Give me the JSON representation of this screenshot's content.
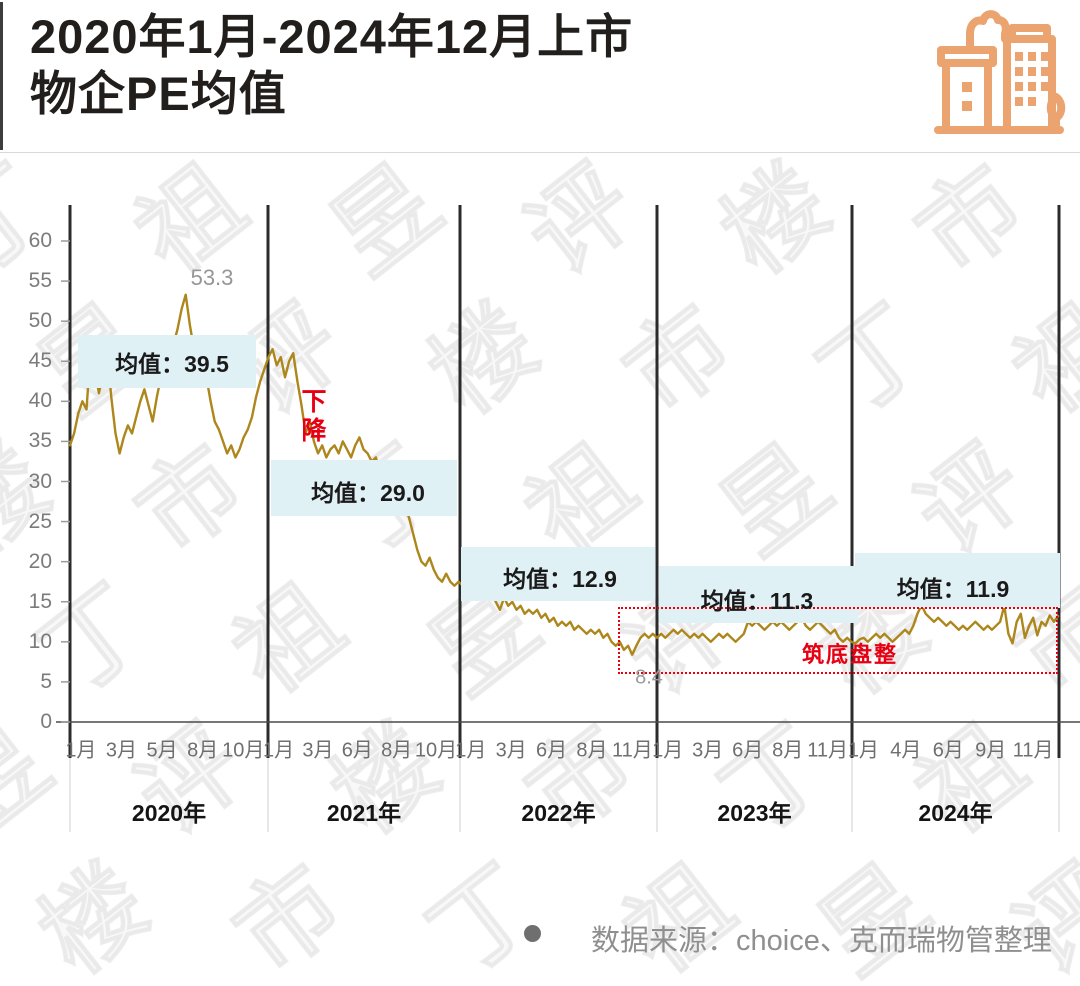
{
  "header": {
    "title_line1": "2020年1月-2024年12月上市",
    "title_line2": "物企PE均值"
  },
  "icon": {
    "name": "city-buildings-icon",
    "color": "#eba470"
  },
  "watermark": {
    "chars": [
      "丁",
      "祖",
      "昱",
      "评",
      "楼",
      "市"
    ]
  },
  "footer": {
    "source": "数据来源：choice、克而瑞物管整理"
  },
  "chart_data": {
    "type": "line",
    "title": "2020年1月-2024年12月上市物企PE均值",
    "ylabel": "PE",
    "ylim": [
      0,
      60
    ],
    "ytick_step": 5,
    "grid": false,
    "line_color": "#ad871c",
    "band_color": "#e0f1f6",
    "accent_red": "#e60012",
    "years": [
      {
        "label": "2020年",
        "months": [
          "1月",
          "3月",
          "5月",
          "8月",
          "10月"
        ]
      },
      {
        "label": "2021年",
        "months": [
          "1月",
          "3月",
          "6月",
          "8月",
          "10月"
        ]
      },
      {
        "label": "2022年",
        "months": [
          "1月",
          "3月",
          "6月",
          "8月",
          "11月"
        ]
      },
      {
        "label": "2023年",
        "months": [
          "1月",
          "3月",
          "6月",
          "8月",
          "11月"
        ]
      },
      {
        "label": "2024年",
        "months": [
          "1月",
          "4月",
          "6月",
          "9月",
          "11月"
        ]
      }
    ],
    "series": [
      {
        "name": "上市物企PE均值",
        "values": [
          34.5,
          36.0,
          38.5,
          40.0,
          39.0,
          46.5,
          44.0,
          41.0,
          43.5,
          46.0,
          40.5,
          36.0,
          33.5,
          35.5,
          37.0,
          36.0,
          38.0,
          40.0,
          41.5,
          39.5,
          37.5,
          40.5,
          43.0,
          45.5,
          44.5,
          47.0,
          49.0,
          51.5,
          53.3,
          49.5,
          46.5,
          44.5,
          45.5,
          43.0,
          40.0,
          37.5,
          36.5,
          35.0,
          33.5,
          34.5,
          33.0,
          34.0,
          35.5,
          36.5,
          38.0,
          40.5,
          42.5,
          44.0,
          45.5,
          46.5,
          44.5,
          45.5,
          43.0,
          45.0,
          46.0,
          42.5,
          39.5,
          36.0,
          37.5,
          35.0,
          33.5,
          34.5,
          33.0,
          34.0,
          34.5,
          33.5,
          35.0,
          34.0,
          33.0,
          34.5,
          35.5,
          34.0,
          33.5,
          32.5,
          33.0,
          31.0,
          29.5,
          27.5,
          26.5,
          27.5,
          26.0,
          27.0,
          25.5,
          23.5,
          21.5,
          20.0,
          19.5,
          20.5,
          19.0,
          18.0,
          17.5,
          18.5,
          17.5,
          17.0,
          17.5,
          17.0,
          17.0,
          17.5,
          16.5,
          17.0,
          17.5,
          18.0,
          16.0,
          15.0,
          14.0,
          15.5,
          14.5,
          15.0,
          14.0,
          14.5,
          13.5,
          14.0,
          13.5,
          14.0,
          13.0,
          13.5,
          12.5,
          13.0,
          12.0,
          12.5,
          12.0,
          12.5,
          11.5,
          12.0,
          11.5,
          11.0,
          11.5,
          11.0,
          11.5,
          10.5,
          11.0,
          10.0,
          9.5,
          10.0,
          9.0,
          9.5,
          8.4,
          9.5,
          10.5,
          11.0,
          10.5,
          11.0,
          10.5,
          11.0,
          10.5,
          11.0,
          11.5,
          11.0,
          11.5,
          11.0,
          10.5,
          11.0,
          10.5,
          11.0,
          10.5,
          10.0,
          10.5,
          11.0,
          10.5,
          11.0,
          10.5,
          10.0,
          10.5,
          11.0,
          12.5,
          12.0,
          12.5,
          12.0,
          11.5,
          12.0,
          12.5,
          12.0,
          12.5,
          12.0,
          11.5,
          12.0,
          12.5,
          13.0,
          12.0,
          11.5,
          12.0,
          12.5,
          12.0,
          11.5,
          11.0,
          11.5,
          10.5,
          10.0,
          10.5,
          10.0,
          9.8,
          10.3,
          10.5,
          10.0,
          10.5,
          11.0,
          10.5,
          11.0,
          10.5,
          10.0,
          10.5,
          11.0,
          11.5,
          11.0,
          12.0,
          13.5,
          14.6,
          13.5,
          13.0,
          12.5,
          13.0,
          12.5,
          12.0,
          12.5,
          12.0,
          11.5,
          12.0,
          11.5,
          12.0,
          12.5,
          12.0,
          11.5,
          12.0,
          11.5,
          12.0,
          12.5,
          14.5,
          11.0,
          9.8,
          12.5,
          13.5,
          10.5,
          12.0,
          13.0,
          10.8,
          12.5,
          12.0,
          13.3,
          12.5,
          13.2
        ]
      }
    ],
    "annotations": {
      "peak_label": "53.3",
      "trough_label": "8.4",
      "decline_label": "下降",
      "bottoming_label": "筑底盘整",
      "means": [
        {
          "label": "均值：39.5",
          "value": 39.5
        },
        {
          "label": "均值：29.0",
          "value": 29.0
        },
        {
          "label": "均值：12.9",
          "value": 12.9
        },
        {
          "label": "均值：11.3",
          "value": 11.3
        },
        {
          "label": "均值：11.9",
          "value": 11.9
        }
      ]
    }
  }
}
